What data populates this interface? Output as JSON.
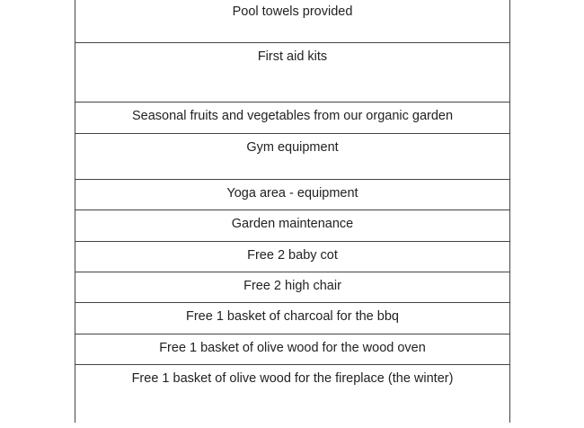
{
  "table": {
    "rows": [
      "Pool towels provided",
      "First aid kits",
      "Seasonal fruits and vegetables from our organic garden",
      "Gym equipment",
      "Yoga area - equipment",
      "Garden maintenance",
      "Free 2 baby cot",
      "Free 2 high chair",
      "Free 1 basket of charcoal for the bbq",
      "Free 1 basket of olive wood for the wood oven",
      "Free 1 basket of olive wood for the fireplace (the winter)"
    ]
  }
}
